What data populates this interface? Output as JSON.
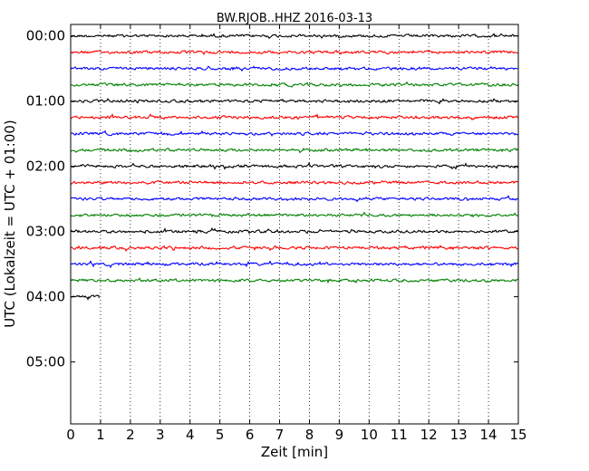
{
  "chart_data": {
    "type": "line",
    "title": "BW.RJOB..HHZ 2016-03-13",
    "xlabel": "Zeit  [min]",
    "ylabel": "UTC (Lokalzeit = UTC + 01:00)",
    "xlim": [
      0,
      15
    ],
    "xticks": [
      "0",
      "1",
      "2",
      "3",
      "4",
      "5",
      "6",
      "7",
      "8",
      "9",
      "10",
      "11",
      "12",
      "13",
      "14",
      "15"
    ],
    "yticks": [
      {
        "label": "00:00",
        "row": 0
      },
      {
        "label": "01:00",
        "row": 4
      },
      {
        "label": "02:00",
        "row": 8
      },
      {
        "label": "03:00",
        "row": 12
      },
      {
        "label": "04:00",
        "row": 16
      },
      {
        "label": "05:00",
        "row": 20
      }
    ],
    "row_range": [
      -0.7,
      23.8
    ],
    "row_interval_minutes": 15,
    "grid": "vertical dotted at each minute",
    "series_colors": [
      "#000000",
      "#ff0000",
      "#0000ff",
      "#008000"
    ],
    "traces": [
      {
        "start": "00:00",
        "end_min": 15
      },
      {
        "start": "00:15",
        "end_min": 15
      },
      {
        "start": "00:30",
        "end_min": 15
      },
      {
        "start": "00:45",
        "end_min": 15
      },
      {
        "start": "01:00",
        "end_min": 15
      },
      {
        "start": "01:15",
        "end_min": 15
      },
      {
        "start": "01:30",
        "end_min": 15
      },
      {
        "start": "01:45",
        "end_min": 15
      },
      {
        "start": "02:00",
        "end_min": 15
      },
      {
        "start": "02:15",
        "end_min": 15
      },
      {
        "start": "02:30",
        "end_min": 15
      },
      {
        "start": "02:45",
        "end_min": 15
      },
      {
        "start": "03:00",
        "end_min": 15
      },
      {
        "start": "03:15",
        "end_min": 15
      },
      {
        "start": "03:30",
        "end_min": 15
      },
      {
        "start": "03:45",
        "end_min": 15
      },
      {
        "start": "04:00",
        "end_min": 0.95
      }
    ]
  }
}
